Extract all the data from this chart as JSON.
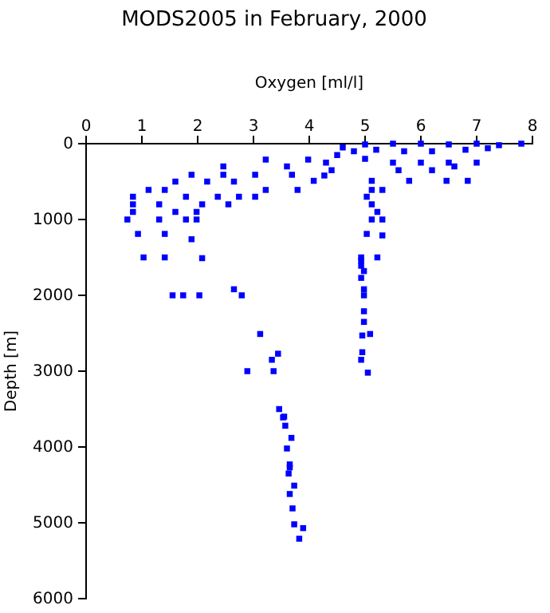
{
  "chart_data": {
    "type": "scatter",
    "title": "MODS2005 in February, 2000",
    "xlabel": "Oxygen [ml/l]",
    "ylabel": "Depth [m]",
    "xlim": [
      0,
      8
    ],
    "xticks": [
      0,
      1,
      2,
      3,
      4,
      5,
      6,
      7,
      8
    ],
    "ylim": [
      6000,
      0
    ],
    "yticks": [
      0,
      1000,
      2000,
      3000,
      4000,
      5000,
      6000
    ],
    "marker": "square",
    "series": [
      {
        "color": "#0000ff",
        "x": [
          7.8,
          7.4,
          7.0,
          6.5,
          6.0,
          5.5,
          5.0,
          4.6,
          4.8,
          5.2,
          5.7,
          6.2,
          6.8,
          7.2,
          4.5,
          5.0,
          5.5,
          6.0,
          6.5,
          7.0,
          4.3,
          4.4,
          5.6,
          6.2,
          6.6,
          3.22,
          3.98,
          2.46,
          3.6,
          1.89,
          2.46,
          3.03,
          3.69,
          1.6,
          2.17,
          2.65,
          4.08,
          4.27,
          5.12,
          5.79,
          6.46,
          6.84,
          1.12,
          1.41,
          3.22,
          3.79,
          5.12,
          5.31,
          0.84,
          1.79,
          2.36,
          2.74,
          3.03,
          5.03,
          0.84,
          1.31,
          2.08,
          2.55,
          5.12,
          0.84,
          1.6,
          1.98,
          5.22,
          0.74,
          1.31,
          1.79,
          1.98,
          5.12,
          5.31,
          0.93,
          1.41,
          1.89,
          5.03,
          5.31,
          1.03,
          1.41,
          2.08,
          4.93,
          5.22,
          4.93,
          4.98,
          1.55,
          1.74,
          2.03,
          2.65,
          2.79,
          3.12,
          3.44,
          3.33,
          2.89,
          3.36,
          3.46,
          3.55,
          4.93,
          4.93,
          4.98,
          4.98,
          4.98,
          4.98,
          4.95,
          5.09,
          4.95,
          4.93,
          5.05,
          3.53,
          3.57,
          3.68,
          3.6,
          3.65,
          3.65,
          3.63,
          3.73,
          3.65,
          3.7,
          3.73,
          3.89,
          3.82
        ],
        "values": [
          0,
          20,
          0,
          10,
          0,
          0,
          10,
          50,
          100,
          80,
          100,
          100,
          80,
          60,
          150,
          200,
          250,
          250,
          250,
          250,
          250,
          350,
          350,
          350,
          300,
          210,
          210,
          300,
          300,
          410,
          410,
          410,
          410,
          500,
          500,
          500,
          490,
          420,
          490,
          490,
          490,
          490,
          610,
          610,
          610,
          610,
          610,
          610,
          700,
          700,
          700,
          700,
          700,
          700,
          800,
          800,
          800,
          800,
          800,
          900,
          900,
          900,
          900,
          1000,
          1000,
          1000,
          1000,
          1000,
          1000,
          1190,
          1190,
          1260,
          1190,
          1210,
          1500,
          1500,
          1510,
          1500,
          1500,
          1610,
          1680,
          2000,
          2000,
          2000,
          1920,
          2000,
          2510,
          2770,
          2850,
          3000,
          3000,
          3500,
          3600,
          1540,
          1770,
          1920,
          2000,
          2210,
          2350,
          2530,
          2510,
          2750,
          2850,
          3020,
          3610,
          3720,
          3880,
          4020,
          4230,
          4270,
          4350,
          4510,
          4620,
          4810,
          5020,
          5070,
          5210
        ]
      }
    ]
  }
}
